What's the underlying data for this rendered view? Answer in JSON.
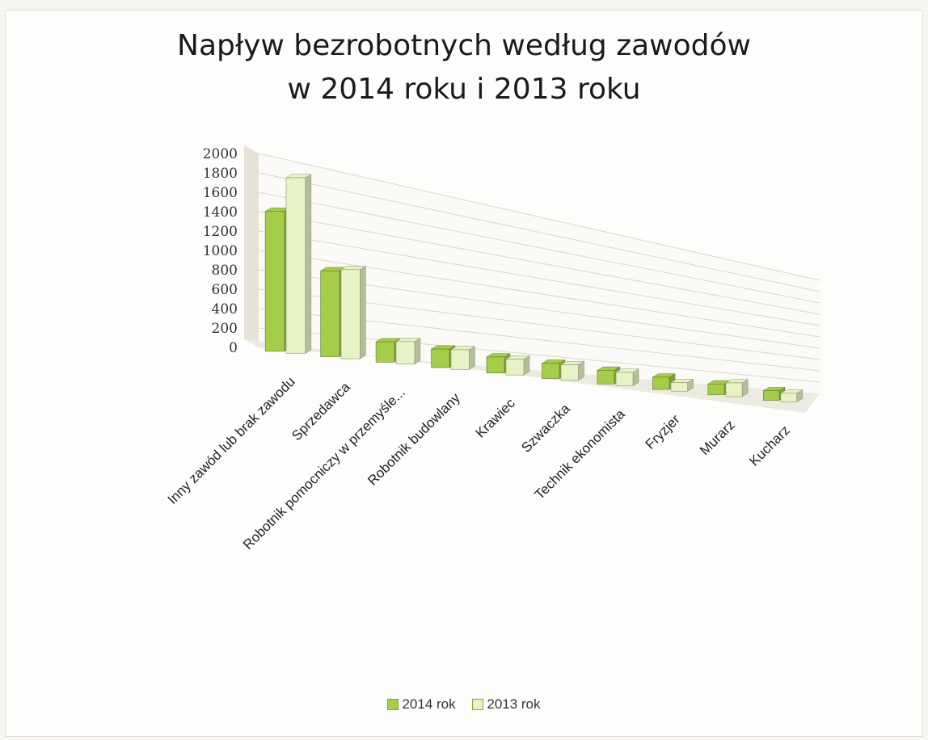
{
  "chart_data": {
    "type": "bar",
    "title": [
      "Napływ bezrobotnych według zawodów",
      "w 2014 roku i 2013 roku"
    ],
    "categories": [
      "Inny zawód lub brak zawodu",
      "Sprzedawca",
      "Robotnik pomocniczy w przemyśle...",
      "Robotnik budowlany",
      "Krawiec",
      "Szwaczka",
      "Technik ekonomista",
      "Fryzjer",
      "Murarz",
      "Kucharz"
    ],
    "series": [
      {
        "name": "2014 rok",
        "values": [
          1450,
          930,
          230,
          220,
          200,
          200,
          190,
          180,
          170,
          160
        ],
        "color": "#a4cd4a"
      },
      {
        "name": "2013 rok",
        "values": [
          1850,
          980,
          260,
          240,
          200,
          210,
          190,
          130,
          220,
          150
        ],
        "color": "#e7f3c4"
      }
    ],
    "ylim": [
      0,
      2000
    ],
    "yticks": [
      "0",
      "200",
      "400",
      "600",
      "800",
      "1000",
      "1200",
      "1400",
      "1600",
      "1800",
      "2000"
    ],
    "grid": true,
    "legend_position": "bottom",
    "style": "3d clustered column"
  }
}
